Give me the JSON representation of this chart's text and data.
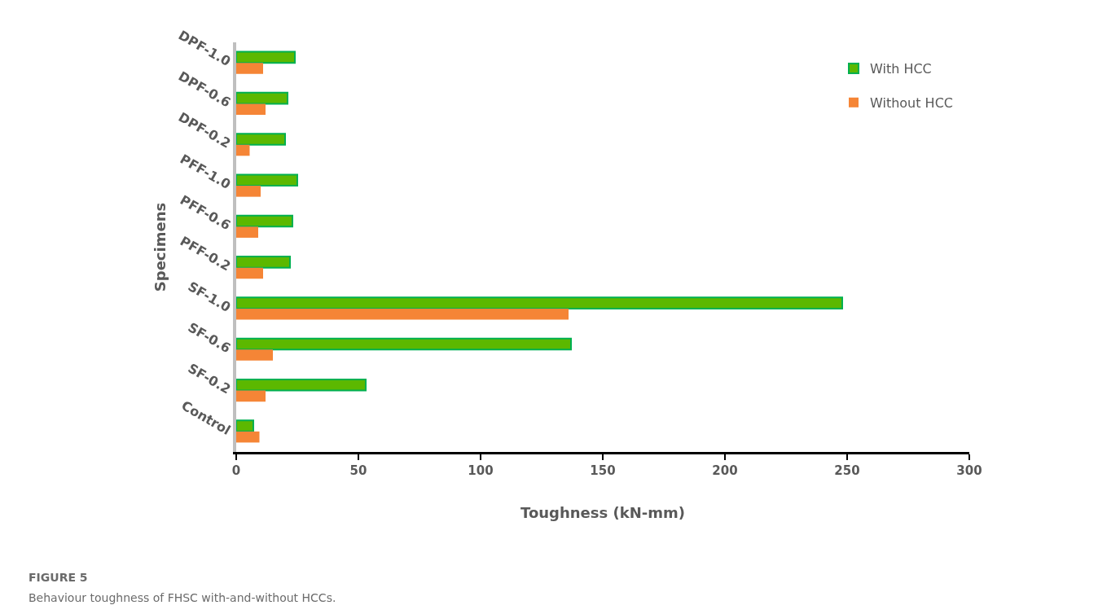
{
  "chart_data": {
    "type": "bar",
    "orientation": "horizontal",
    "xlabel": "Toughness (kN-mm)",
    "ylabel": "Specimens",
    "categories": [
      "DPF-1.0",
      "DPF-0.6",
      "DPF-0.2",
      "PFF-1.0",
      "PFF-0.6",
      "PFF-0.2",
      "SF-1.0",
      "SF-0.6",
      "SF-0.2",
      "Control"
    ],
    "series": [
      {
        "name": "With HCC",
        "color": "#5cb800",
        "values": [
          24,
          21,
          20,
          25,
          23,
          22,
          248,
          137,
          53,
          7
        ]
      },
      {
        "name": "Without HCC",
        "color": "#f58536",
        "values": [
          11,
          12,
          5.5,
          10,
          9,
          11,
          136,
          15,
          12,
          9.5
        ]
      }
    ],
    "xlim": [
      0,
      300
    ],
    "xticks": [
      0,
      50,
      100,
      150,
      200,
      250,
      300
    ],
    "grid": false,
    "legend": "top right",
    "annotations": [
      "FIGURE 5",
      "Behaviour toughness of FHSC with-and-without HCCs."
    ]
  }
}
